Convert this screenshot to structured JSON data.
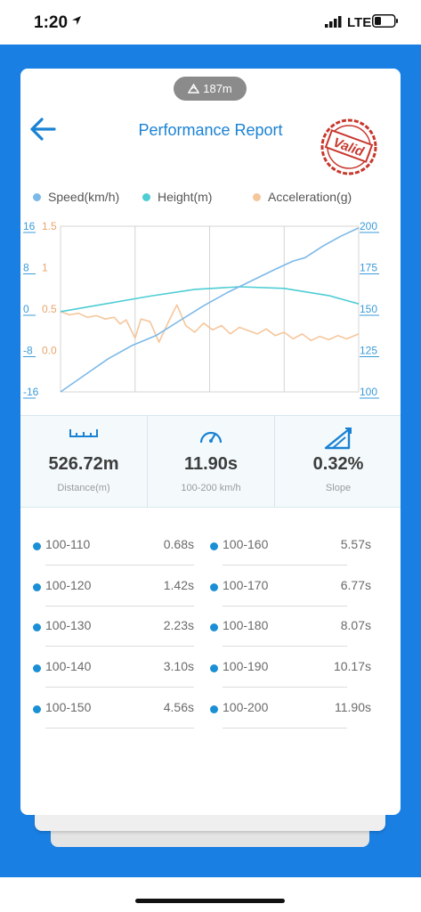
{
  "status_bar": {
    "time": "1:20",
    "network": "LTE"
  },
  "distance_badge": "187m",
  "header": {
    "title": "Performance Report",
    "stamp_text": "Valid"
  },
  "legend": [
    {
      "label": "Speed(km/h)",
      "color": "#7cb9e8"
    },
    {
      "label": "Height(m)",
      "color": "#4ecdd4"
    },
    {
      "label": "Acceleration(g)",
      "color": "#f5c69b"
    }
  ],
  "chart_data": {
    "type": "line",
    "x_range": [
      0,
      1
    ],
    "axes": {
      "left_height": {
        "ticks": [
          "16",
          "8",
          "0",
          "-8",
          "-16"
        ],
        "range": [
          -16,
          16
        ]
      },
      "left_accel": {
        "ticks": [
          "1.5",
          "1",
          "0.5",
          "0.0"
        ],
        "range": [
          -0.5,
          1.5
        ]
      },
      "right_speed": {
        "ticks": [
          "200",
          "175",
          "150",
          "125",
          "100"
        ],
        "range": [
          100,
          200
        ]
      }
    },
    "grid": true,
    "series": [
      {
        "name": "Speed(km/h)",
        "axis": "right_speed",
        "color": "#7cb9e8",
        "x": [
          0.0,
          0.08,
          0.16,
          0.24,
          0.32,
          0.4,
          0.48,
          0.56,
          0.64,
          0.72,
          0.78,
          0.82,
          0.88,
          0.94,
          1.0
        ],
        "y": [
          100,
          110,
          120,
          128,
          134,
          143,
          152,
          160,
          167,
          174,
          179,
          181,
          188,
          194,
          199
        ]
      },
      {
        "name": "Height(m)",
        "axis": "left_height",
        "color": "#4ecdd4",
        "x": [
          0.0,
          0.15,
          0.3,
          0.45,
          0.6,
          0.75,
          0.9,
          1.0
        ],
        "y": [
          -0.5,
          1.0,
          2.5,
          3.8,
          4.3,
          4.0,
          2.6,
          1.0
        ]
      },
      {
        "name": "Acceleration(g)",
        "axis": "left_accel",
        "color": "#f5c69b",
        "x": [
          0.0,
          0.03,
          0.06,
          0.09,
          0.12,
          0.15,
          0.18,
          0.2,
          0.22,
          0.25,
          0.27,
          0.3,
          0.33,
          0.36,
          0.39,
          0.42,
          0.45,
          0.48,
          0.51,
          0.54,
          0.57,
          0.6,
          0.63,
          0.66,
          0.69,
          0.72,
          0.75,
          0.78,
          0.81,
          0.84,
          0.87,
          0.9,
          0.93,
          0.96,
          1.0
        ],
        "y": [
          0.47,
          0.43,
          0.45,
          0.4,
          0.42,
          0.38,
          0.4,
          0.32,
          0.37,
          0.15,
          0.38,
          0.35,
          0.1,
          0.33,
          0.55,
          0.3,
          0.22,
          0.33,
          0.25,
          0.3,
          0.2,
          0.28,
          0.24,
          0.2,
          0.26,
          0.18,
          0.22,
          0.14,
          0.2,
          0.12,
          0.17,
          0.13,
          0.18,
          0.14,
          0.2
        ]
      }
    ]
  },
  "stats": [
    {
      "value": "526.72m",
      "label": "Distance(m)",
      "icon": "ruler-icon"
    },
    {
      "value": "11.90s",
      "label": "100-200 km/h",
      "icon": "speedometer-icon"
    },
    {
      "value": "0.32%",
      "label": "Slope",
      "icon": "slope-icon"
    }
  ],
  "splits_left": [
    {
      "range": "100-110",
      "time": "0.68s"
    },
    {
      "range": "100-120",
      "time": "1.42s"
    },
    {
      "range": "100-130",
      "time": "2.23s"
    },
    {
      "range": "100-140",
      "time": "3.10s"
    },
    {
      "range": "100-150",
      "time": "4.56s"
    }
  ],
  "splits_right": [
    {
      "range": "100-160",
      "time": "5.57s"
    },
    {
      "range": "100-170",
      "time": "6.77s"
    },
    {
      "range": "100-180",
      "time": "8.07s"
    },
    {
      "range": "100-190",
      "time": "10.17s"
    },
    {
      "range": "100-200",
      "time": "11.90s"
    }
  ]
}
